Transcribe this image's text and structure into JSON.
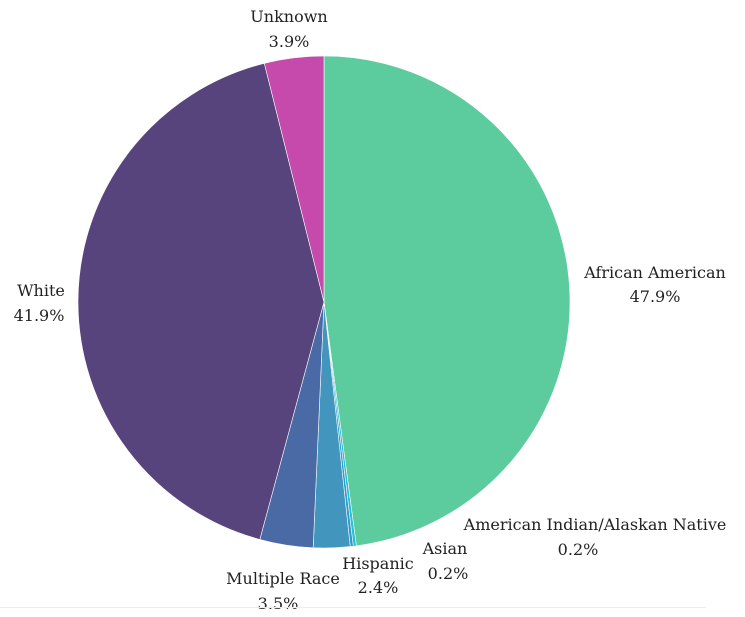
{
  "chart_data": {
    "type": "pie",
    "title": "",
    "start_angle_deg": 0,
    "direction": "clockwise",
    "slices": [
      {
        "label": "African American",
        "value_text": "47.9%",
        "value": 47.9,
        "color": "#5ccc9e"
      },
      {
        "label": "American Indian/Alaskan Native",
        "value_text": "0.2%",
        "value": 0.2,
        "color": "#25bfd6"
      },
      {
        "label": "Asian",
        "value_text": "0.2%",
        "value": 0.2,
        "color": "#2d9ccc"
      },
      {
        "label": "Hispanic",
        "value_text": "2.4%",
        "value": 2.4,
        "color": "#4296bd"
      },
      {
        "label": "Multiple Race",
        "value_text": "3.5%",
        "value": 3.5,
        "color": "#4a6aa5"
      },
      {
        "label": "White",
        "value_text": "41.9%",
        "value": 41.9,
        "color": "#57447d"
      },
      {
        "label": "Unknown",
        "value_text": "3.9%",
        "value": 3.9,
        "color": "#c54aac"
      }
    ]
  }
}
